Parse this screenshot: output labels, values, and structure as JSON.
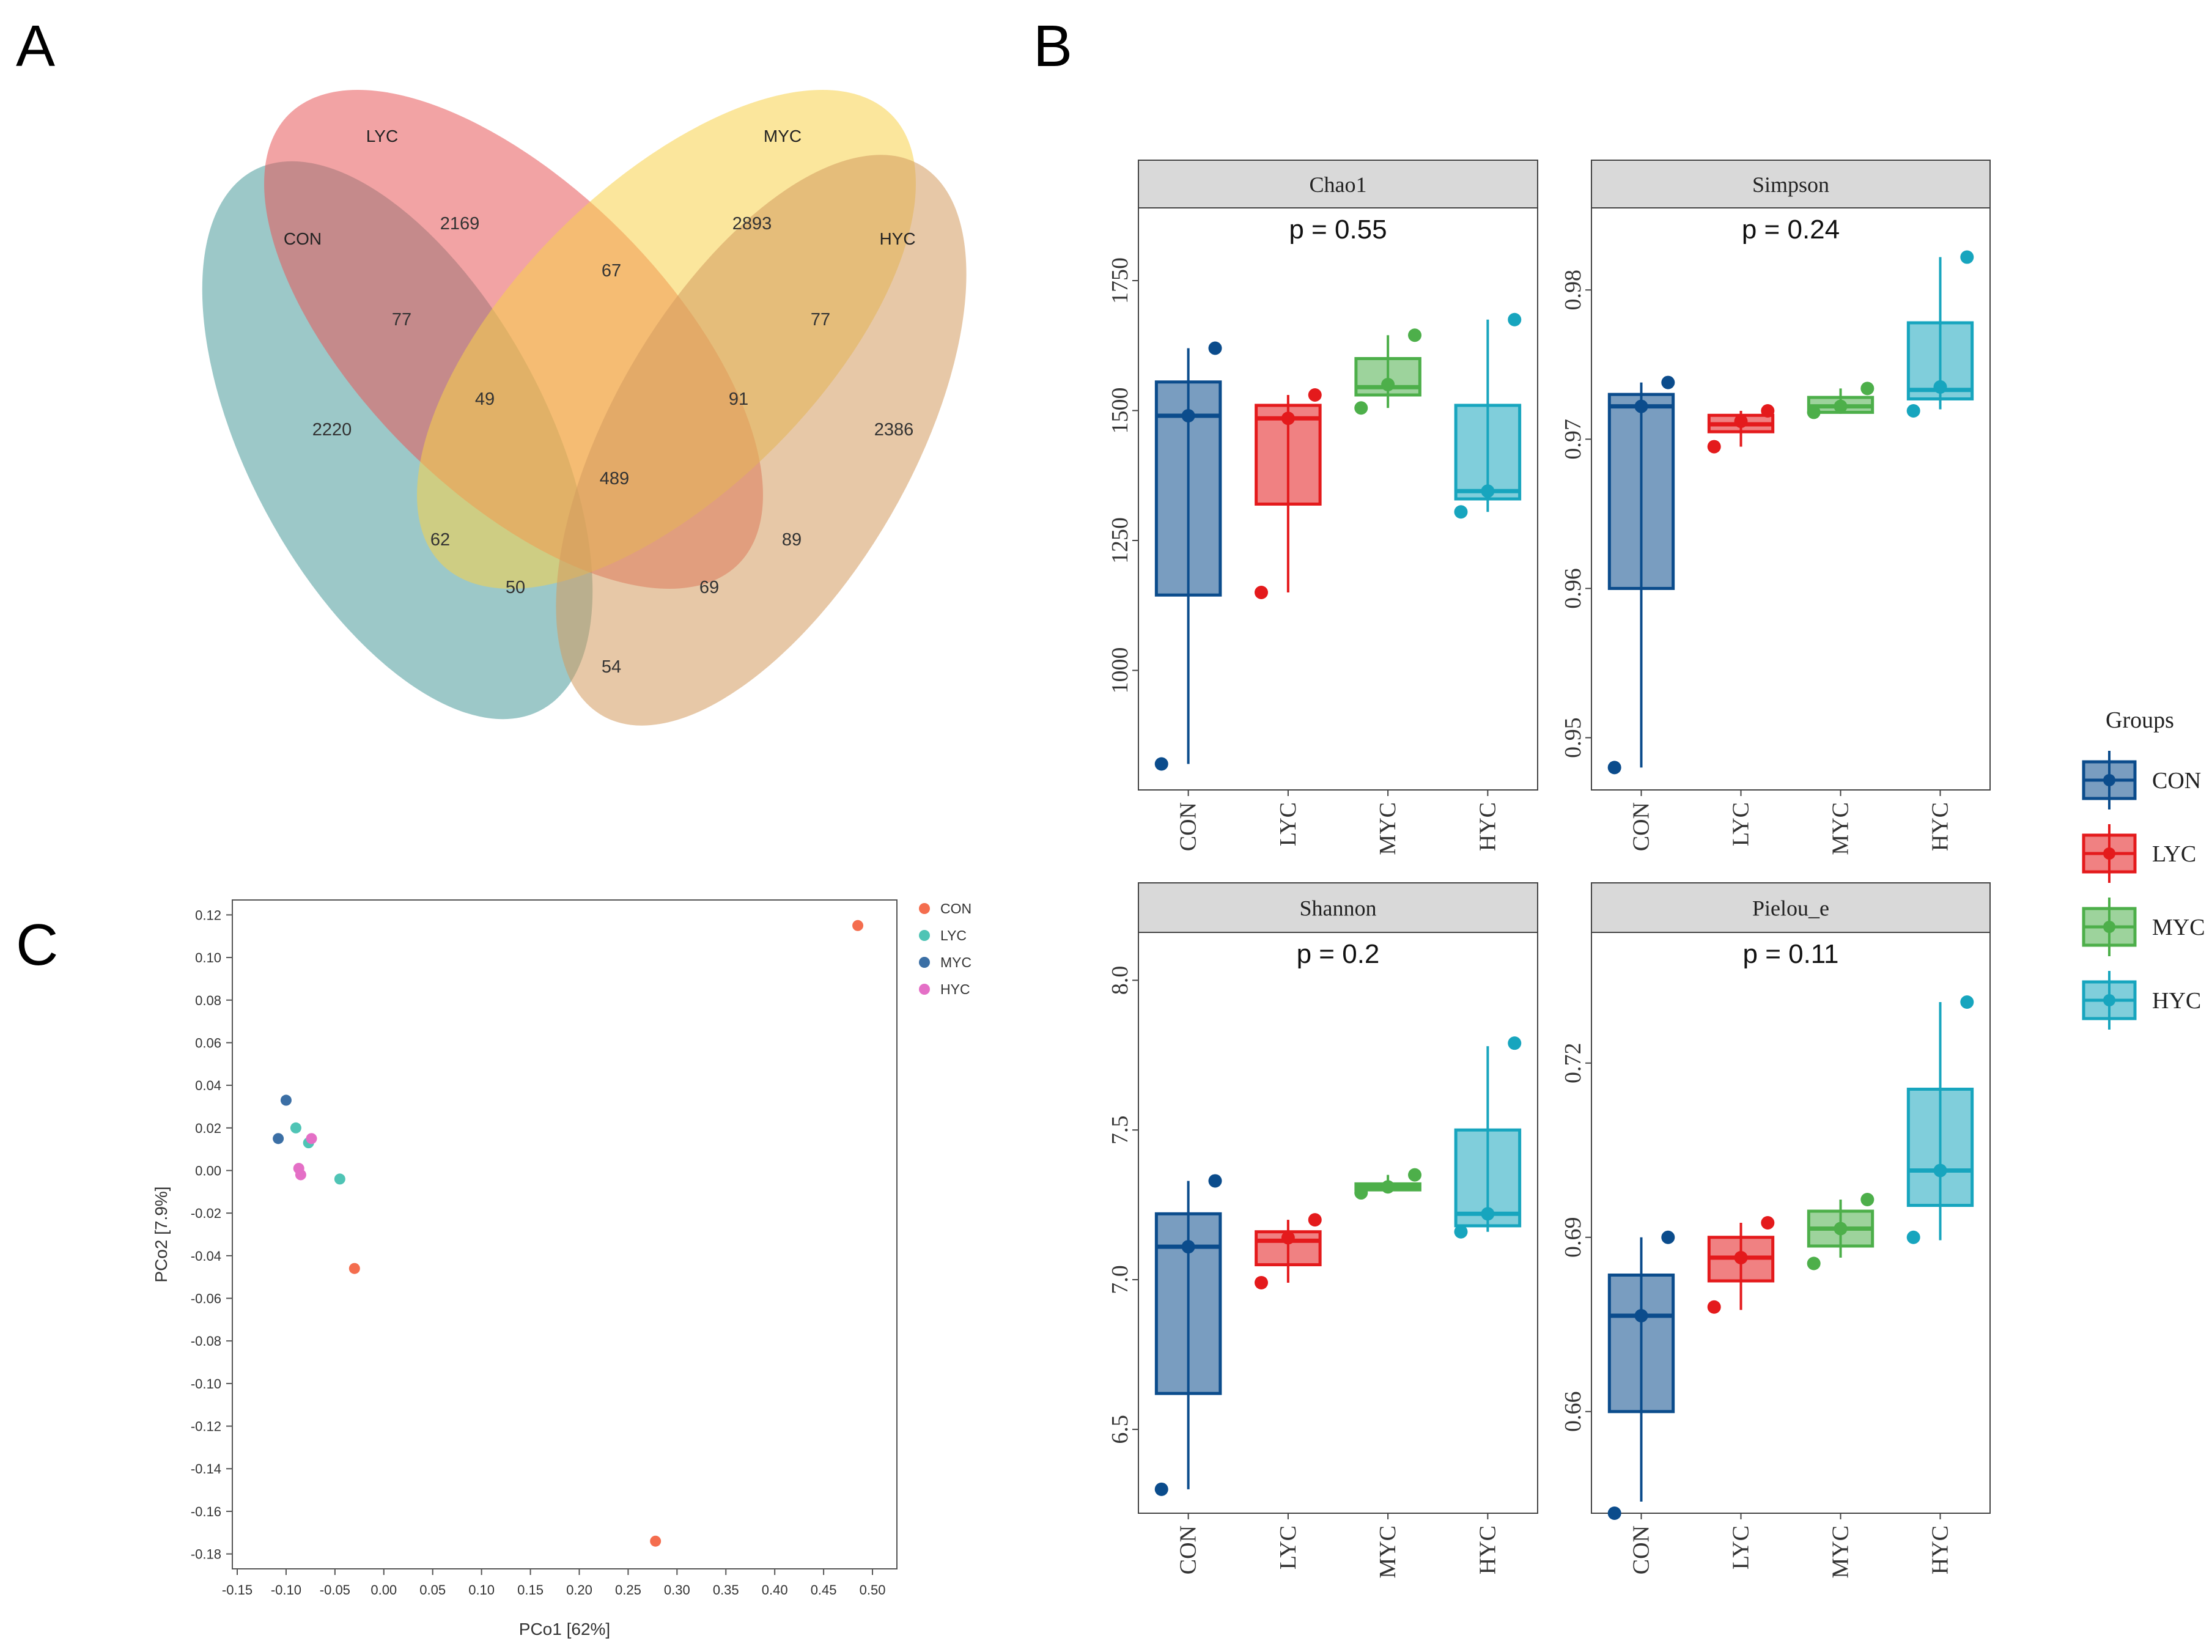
{
  "panel_labels": {
    "a": "A",
    "b": "B",
    "c": "C"
  },
  "chart_data": [
    {
      "type": "venn",
      "panel": "A",
      "sets": [
        {
          "name": "CON",
          "color": "#4a9a9a"
        },
        {
          "name": "LYC",
          "color": "#e8585a"
        },
        {
          "name": "MYC",
          "color": "#f7d24a"
        },
        {
          "name": "HYC",
          "color": "#d49a5e"
        }
      ],
      "regions": [
        {
          "sets": [
            "CON"
          ],
          "value": 2220
        },
        {
          "sets": [
            "LYC"
          ],
          "value": 2169
        },
        {
          "sets": [
            "MYC"
          ],
          "value": 2893
        },
        {
          "sets": [
            "HYC"
          ],
          "value": 2386
        },
        {
          "sets": [
            "CON",
            "LYC"
          ],
          "value": 77
        },
        {
          "sets": [
            "LYC",
            "MYC"
          ],
          "value": 67
        },
        {
          "sets": [
            "MYC",
            "HYC"
          ],
          "value": 77
        },
        {
          "sets": [
            "CON",
            "LYC",
            "MYC"
          ],
          "value": 49
        },
        {
          "sets": [
            "LYC",
            "MYC",
            "HYC"
          ],
          "value": 91
        },
        {
          "sets": [
            "CON",
            "LYC",
            "MYC",
            "HYC"
          ],
          "value": 489
        },
        {
          "sets": [
            "CON",
            "MYC"
          ],
          "value": 62
        },
        {
          "sets": [
            "LYC",
            "HYC"
          ],
          "value": 89
        },
        {
          "sets": [
            "CON",
            "MYC",
            "HYC"
          ],
          "value": 50
        },
        {
          "sets": [
            "CON",
            "LYC",
            "HYC"
          ],
          "value": 69
        },
        {
          "sets": [
            "CON",
            "HYC"
          ],
          "value": 54
        }
      ]
    },
    {
      "type": "box",
      "panel": "B",
      "groups": [
        "CON",
        "LYC",
        "MYC",
        "HYC"
      ],
      "group_colors": {
        "CON": "#0b4c8c",
        "LYC": "#e41a1c",
        "MYC": "#4daf4a",
        "HYC": "#17a5be"
      },
      "legend_title": "Groups",
      "facets": [
        {
          "title": "Chao1",
          "pvalue": "p = 0.55",
          "ylim": [
            770,
            1890
          ],
          "yticks": [
            1000,
            1250,
            1500,
            1750
          ],
          "tick_labels": [
            "1000",
            "1250",
            "1500",
            "1750"
          ],
          "boxes": [
            {
              "group": "CON",
              "min": 820,
              "q1": 1145,
              "median": 1490,
              "q3": 1555,
              "max": 1620,
              "points": [
                820,
                1490,
                1620
              ]
            },
            {
              "group": "LYC",
              "min": 1150,
              "q1": 1320,
              "median": 1485,
              "q3": 1510,
              "max": 1530,
              "points": [
                1150,
                1485,
                1530
              ]
            },
            {
              "group": "MYC",
              "min": 1505,
              "q1": 1530,
              "median": 1545,
              "q3": 1600,
              "max": 1645,
              "points": [
                1505,
                1550,
                1645
              ]
            },
            {
              "group": "HYC",
              "min": 1305,
              "q1": 1330,
              "median": 1345,
              "q3": 1510,
              "max": 1675,
              "points": [
                1305,
                1345,
                1675
              ]
            }
          ]
        },
        {
          "title": "Simpson",
          "pvalue": "p = 0.24",
          "ylim": [
            0.9465,
            0.9855
          ],
          "yticks": [
            0.95,
            0.96,
            0.97,
            0.98
          ],
          "tick_labels": [
            "0.95",
            "0.96",
            "0.97",
            "0.98"
          ],
          "boxes": [
            {
              "group": "CON",
              "min": 0.948,
              "q1": 0.96,
              "median": 0.9722,
              "q3": 0.973,
              "max": 0.9738,
              "points": [
                0.948,
                0.9722,
                0.9738
              ]
            },
            {
              "group": "LYC",
              "min": 0.9695,
              "q1": 0.9705,
              "median": 0.971,
              "q3": 0.9716,
              "max": 0.9719,
              "points": [
                0.9695,
                0.9712,
                0.9719
              ]
            },
            {
              "group": "MYC",
              "min": 0.9717,
              "q1": 0.9718,
              "median": 0.9722,
              "q3": 0.9728,
              "max": 0.9734,
              "points": [
                0.9718,
                0.9722,
                0.9734
              ]
            },
            {
              "group": "HYC",
              "min": 0.972,
              "q1": 0.9727,
              "median": 0.9733,
              "q3": 0.9778,
              "max": 0.9822,
              "points": [
                0.9719,
                0.9735,
                0.9822
              ]
            }
          ]
        },
        {
          "title": "Shannon",
          "pvalue": "p = 0.2",
          "ylim": [
            6.22,
            8.16
          ],
          "yticks": [
            6.5,
            7.0,
            7.5,
            8.0
          ],
          "tick_labels": [
            "6.5",
            "7.0",
            "7.5",
            "8.0"
          ],
          "boxes": [
            {
              "group": "CON",
              "min": 6.3,
              "q1": 6.62,
              "median": 7.11,
              "q3": 7.22,
              "max": 7.33,
              "points": [
                6.3,
                7.11,
                7.33
              ]
            },
            {
              "group": "LYC",
              "min": 6.99,
              "q1": 7.05,
              "median": 7.13,
              "q3": 7.16,
              "max": 7.2,
              "points": [
                6.99,
                7.14,
                7.2
              ]
            },
            {
              "group": "MYC",
              "min": 7.29,
              "q1": 7.3,
              "median": 7.31,
              "q3": 7.32,
              "max": 7.35,
              "points": [
                7.29,
                7.31,
                7.35
              ]
            },
            {
              "group": "HYC",
              "min": 7.16,
              "q1": 7.18,
              "median": 7.22,
              "q3": 7.5,
              "max": 7.78,
              "points": [
                7.16,
                7.22,
                7.79
              ]
            }
          ]
        },
        {
          "title": "Pielou_e",
          "pvalue": "p = 0.11",
          "ylim": [
            0.6425,
            0.7425
          ],
          "yticks": [
            0.66,
            0.69,
            0.72
          ],
          "tick_labels": [
            "0.66",
            "0.69",
            "0.72"
          ],
          "boxes": [
            {
              "group": "CON",
              "min": 0.6445,
              "q1": 0.66,
              "median": 0.6765,
              "q3": 0.6835,
              "max": 0.69,
              "points": [
                0.6425,
                0.6765,
                0.69
              ]
            },
            {
              "group": "LYC",
              "min": 0.6775,
              "q1": 0.6825,
              "median": 0.6865,
              "q3": 0.69,
              "max": 0.6925,
              "points": [
                0.678,
                0.6865,
                0.6925
              ]
            },
            {
              "group": "MYC",
              "min": 0.6865,
              "q1": 0.6885,
              "median": 0.6915,
              "q3": 0.6945,
              "max": 0.6965,
              "points": [
                0.6855,
                0.6915,
                0.6965
              ]
            },
            {
              "group": "HYC",
              "min": 0.6895,
              "q1": 0.6955,
              "median": 0.7015,
              "q3": 0.7155,
              "max": 0.7305,
              "points": [
                0.69,
                0.7015,
                0.7305
              ]
            }
          ]
        }
      ]
    },
    {
      "type": "scatter",
      "panel": "C",
      "xlabel": "PCo1 [62%]",
      "ylabel": "PCo2 [7.9%]",
      "xlim": [
        -0.155,
        0.525
      ],
      "ylim": [
        -0.187,
        0.127
      ],
      "xticks": [
        -0.15,
        -0.1,
        -0.05,
        0.0,
        0.05,
        0.1,
        0.15,
        0.2,
        0.25,
        0.3,
        0.35,
        0.4,
        0.45,
        0.5
      ],
      "xtick_labels": [
        "-0.15",
        "-0.10",
        "-0.05",
        "0.00",
        "0.05",
        "0.10",
        "0.15",
        "0.20",
        "0.25",
        "0.30",
        "0.35",
        "0.40",
        "0.45",
        "0.50"
      ],
      "yticks": [
        0.12,
        0.1,
        0.08,
        0.06,
        0.04,
        0.02,
        0.0,
        -0.02,
        -0.04,
        -0.06,
        -0.08,
        -0.1,
        -0.12,
        -0.14,
        -0.16,
        -0.18
      ],
      "ytick_labels": [
        "0.12",
        "0.10",
        "0.08",
        "0.06",
        "0.04",
        "0.02",
        "0.00",
        "-0.02",
        "-0.04",
        "-0.06",
        "-0.08",
        "-0.10",
        "-0.12",
        "-0.14",
        "-0.16",
        "-0.18"
      ],
      "legend": [
        {
          "name": "CON",
          "color": "#f46d4e"
        },
        {
          "name": "LYC",
          "color": "#4fc4b5"
        },
        {
          "name": "MYC",
          "color": "#3b6fa5"
        },
        {
          "name": "HYC",
          "color": "#e46fc6"
        }
      ],
      "series": [
        {
          "name": "CON",
          "points": [
            [
              0.485,
              0.115
            ],
            [
              -0.03,
              -0.046
            ],
            [
              0.278,
              -0.174
            ]
          ]
        },
        {
          "name": "LYC",
          "points": [
            [
              -0.09,
              0.02
            ],
            [
              -0.077,
              0.013
            ],
            [
              -0.045,
              -0.004
            ]
          ]
        },
        {
          "name": "MYC",
          "points": [
            [
              -0.1,
              0.033
            ],
            [
              -0.108,
              0.015
            ]
          ]
        },
        {
          "name": "HYC",
          "points": [
            [
              -0.074,
              0.015
            ],
            [
              -0.087,
              0.001
            ],
            [
              -0.085,
              -0.002
            ]
          ]
        }
      ]
    }
  ]
}
